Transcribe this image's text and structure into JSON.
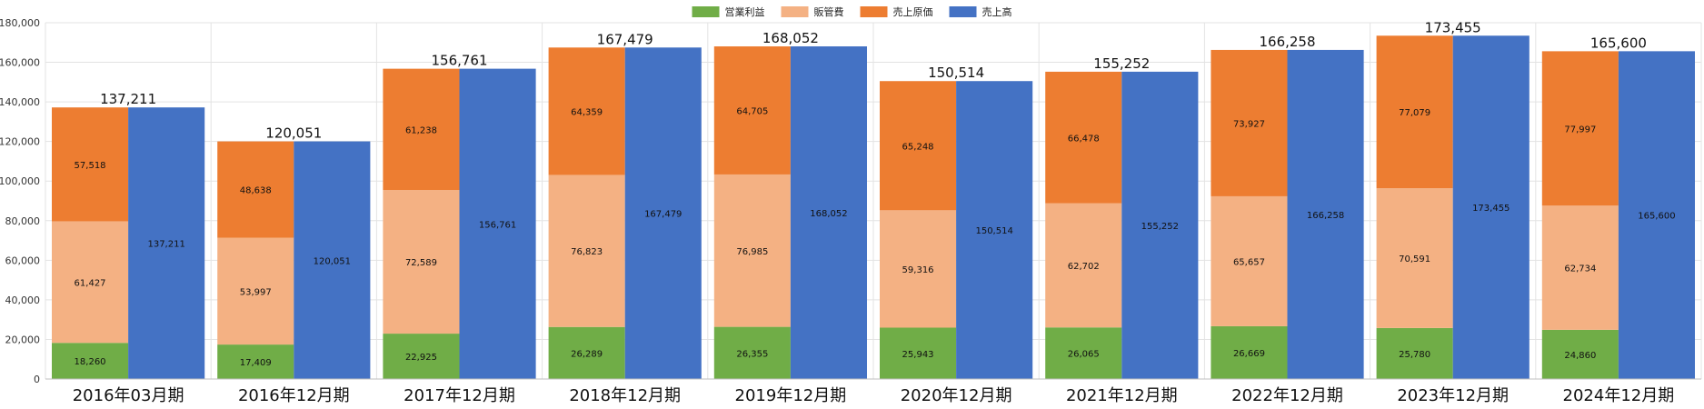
{
  "chart_data": {
    "type": "bar",
    "title": "",
    "xlabel": "",
    "ylabel": "",
    "ylim": [
      0,
      180000
    ],
    "yticks": [
      0,
      20000,
      40000,
      60000,
      80000,
      100000,
      120000,
      140000,
      160000,
      180000
    ],
    "ytick_labels": [
      "0",
      "20,000",
      "40,000",
      "60,000",
      "80,000",
      "100,000",
      "120,000",
      "140,000",
      "160,000",
      "180,000"
    ],
    "grid": true,
    "legend_position": "top-center",
    "categories": [
      "2016年03月期",
      "2016年12月期",
      "2017年12月期",
      "2018年12月期",
      "2019年12月期",
      "2020年12月期",
      "2021年12月期",
      "2022年12月期",
      "2023年12月期",
      "2024年12月期"
    ],
    "stacked_series": [
      {
        "name": "営業利益",
        "color": "#70ad47",
        "values": [
          18260,
          17409,
          22925,
          26289,
          26355,
          25943,
          26065,
          26669,
          25780,
          24860
        ],
        "labels": [
          "18,260",
          "17,409",
          "22,925",
          "26,289",
          "26,355",
          "25,943",
          "26,065",
          "26,669",
          "25,780",
          "24,860"
        ]
      },
      {
        "name": "販管費",
        "color": "#f4b183",
        "values": [
          61427,
          53997,
          72589,
          76823,
          76985,
          59316,
          62702,
          65657,
          70591,
          62734
        ],
        "labels": [
          "61,427",
          "53,997",
          "72,589",
          "76,823",
          "76,985",
          "59,316",
          "62,702",
          "65,657",
          "70,591",
          "62,734"
        ]
      },
      {
        "name": "売上原価",
        "color": "#ed7d31",
        "values": [
          57518,
          48638,
          61238,
          64359,
          64705,
          65248,
          66478,
          73927,
          77079,
          77997
        ],
        "labels": [
          "57,518",
          "48,638",
          "61,238",
          "64,359",
          "64,705",
          "65,248",
          "66,478",
          "73,927",
          "77,079",
          "77,997"
        ]
      }
    ],
    "revenue_series": {
      "name": "売上高",
      "color": "#4472c4",
      "values": [
        137211,
        120051,
        156761,
        167479,
        168052,
        150514,
        155252,
        166258,
        173455,
        165600
      ],
      "labels": [
        "137,211",
        "120,051",
        "156,761",
        "167,479",
        "168,052",
        "150,514",
        "155,252",
        "166,258",
        "173,455",
        "165,600"
      ]
    },
    "total_labels": [
      "137,211",
      "120,051",
      "156,761",
      "167,479",
      "168,052",
      "150,514",
      "155,252",
      "166,258",
      "173,455",
      "165,600"
    ],
    "legend": [
      {
        "name": "営業利益",
        "color": "#70ad47"
      },
      {
        "name": "販管費",
        "color": "#f4b183"
      },
      {
        "name": "売上原価",
        "color": "#ed7d31"
      },
      {
        "name": "売上高",
        "color": "#4472c4"
      }
    ]
  }
}
